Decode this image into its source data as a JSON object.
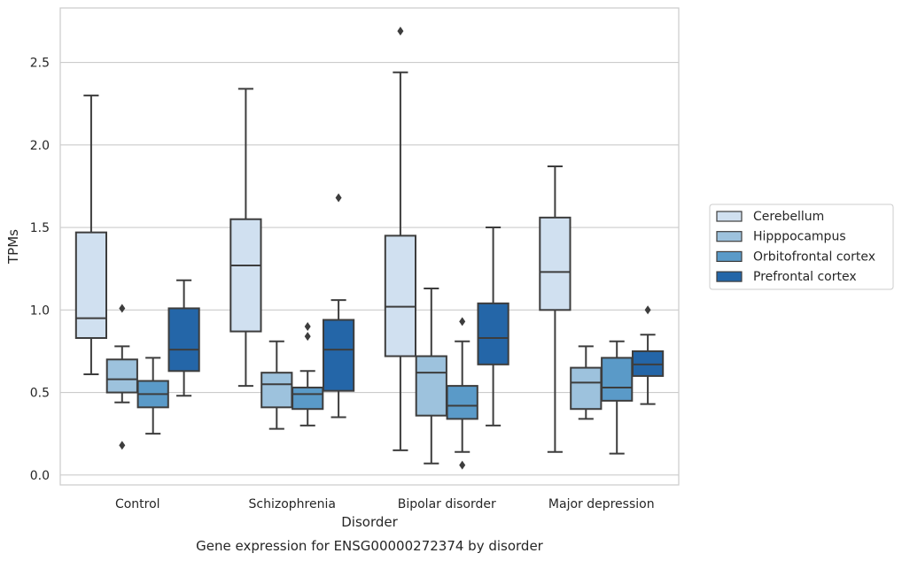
{
  "caption": "Gene expression for ENSG00000272374 by disorder",
  "chart_data": {
    "type": "boxplot",
    "xlabel": "Disorder",
    "ylabel": "TPMs",
    "ylim": [
      -0.06,
      2.83
    ],
    "yticks": [
      0.0,
      0.5,
      1.0,
      1.5,
      2.0,
      2.5
    ],
    "ytick_labels": [
      "0.0",
      "0.5",
      "1.0",
      "1.5",
      "2.0",
      "2.5"
    ],
    "grid": "horizontal",
    "legend_position": "right",
    "categories": [
      "Control",
      "Schizophrenia",
      "Bipolar disorder",
      "Major depression"
    ],
    "series": [
      {
        "name": "Cerebellum",
        "color": "#d0e0f0",
        "boxes": [
          {
            "whislo": 0.61,
            "q1": 0.83,
            "med": 0.95,
            "q3": 1.47,
            "whishi": 2.3,
            "fliers": []
          },
          {
            "whislo": 0.54,
            "q1": 0.87,
            "med": 1.27,
            "q3": 1.55,
            "whishi": 2.34,
            "fliers": []
          },
          {
            "whislo": 0.15,
            "q1": 0.72,
            "med": 1.02,
            "q3": 1.45,
            "whishi": 2.44,
            "fliers": [
              2.69
            ]
          },
          {
            "whislo": 0.14,
            "q1": 1.0,
            "med": 1.23,
            "q3": 1.56,
            "whishi": 1.87,
            "fliers": []
          }
        ]
      },
      {
        "name": "Hipppocampus",
        "color": "#9dc2dd",
        "boxes": [
          {
            "whislo": 0.44,
            "q1": 0.5,
            "med": 0.58,
            "q3": 0.7,
            "whishi": 0.78,
            "fliers": [
              1.01,
              0.18
            ]
          },
          {
            "whislo": 0.28,
            "q1": 0.41,
            "med": 0.55,
            "q3": 0.62,
            "whishi": 0.81,
            "fliers": []
          },
          {
            "whislo": 0.07,
            "q1": 0.36,
            "med": 0.62,
            "q3": 0.72,
            "whishi": 1.13,
            "fliers": []
          },
          {
            "whislo": 0.34,
            "q1": 0.4,
            "med": 0.56,
            "q3": 0.65,
            "whishi": 0.78,
            "fliers": []
          }
        ]
      },
      {
        "name": "Orbitofrontal cortex",
        "color": "#5a9ac8",
        "boxes": [
          {
            "whislo": 0.25,
            "q1": 0.41,
            "med": 0.49,
            "q3": 0.57,
            "whishi": 0.71,
            "fliers": []
          },
          {
            "whislo": 0.3,
            "q1": 0.4,
            "med": 0.49,
            "q3": 0.53,
            "whishi": 0.63,
            "fliers": [
              0.9,
              0.84
            ]
          },
          {
            "whislo": 0.14,
            "q1": 0.34,
            "med": 0.42,
            "q3": 0.54,
            "whishi": 0.81,
            "fliers": [
              0.93,
              0.06
            ]
          },
          {
            "whislo": 0.13,
            "q1": 0.45,
            "med": 0.53,
            "q3": 0.71,
            "whishi": 0.81,
            "fliers": []
          }
        ]
      },
      {
        "name": "Prefrontal cortex",
        "color": "#2466a8",
        "boxes": [
          {
            "whislo": 0.48,
            "q1": 0.63,
            "med": 0.76,
            "q3": 1.01,
            "whishi": 1.18,
            "fliers": []
          },
          {
            "whislo": 0.35,
            "q1": 0.51,
            "med": 0.76,
            "q3": 0.94,
            "whishi": 1.06,
            "fliers": [
              1.68
            ]
          },
          {
            "whislo": 0.3,
            "q1": 0.67,
            "med": 0.83,
            "q3": 1.04,
            "whishi": 1.5,
            "fliers": []
          },
          {
            "whislo": 0.43,
            "q1": 0.6,
            "med": 0.67,
            "q3": 0.75,
            "whishi": 0.85,
            "fliers": [
              1.0
            ]
          }
        ]
      }
    ]
  }
}
